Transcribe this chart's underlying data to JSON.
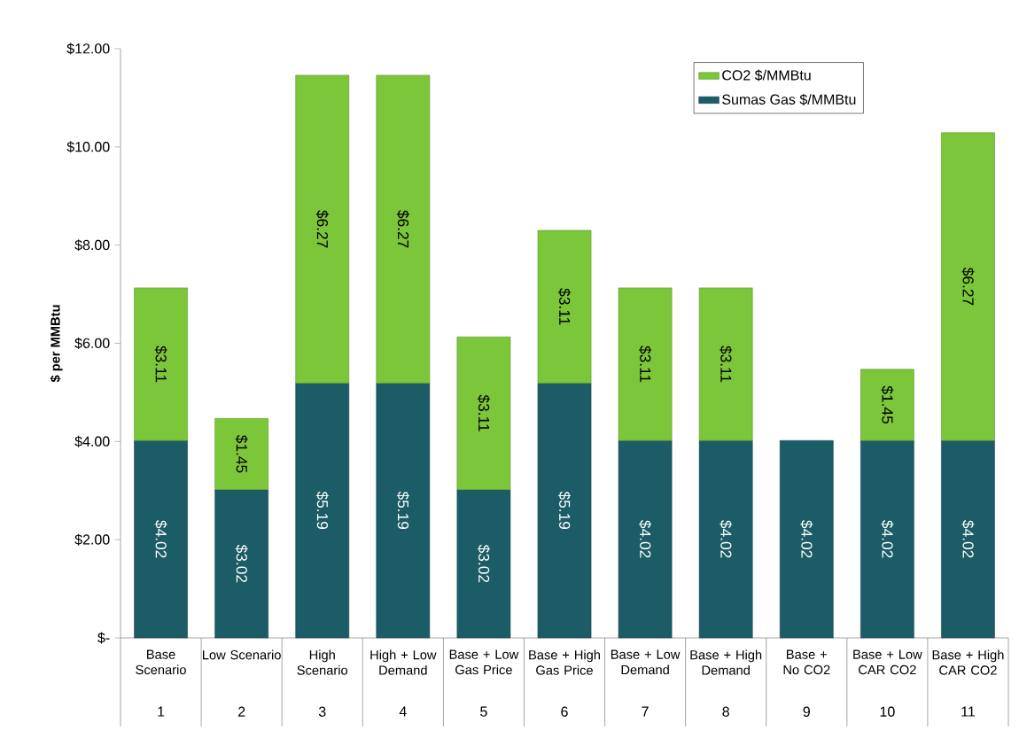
{
  "chart_data": {
    "type": "bar",
    "stacked": true,
    "ylabel": "$ per MMBtu",
    "categories": [
      "Base Scenario",
      "Low Scenario",
      "High Scenario",
      "High + Low Demand",
      "Base + Low Gas Price",
      "Base + High Gas Price",
      "Base + Low Demand",
      "Base + High Demand",
      "Base + No CO2",
      "Base + Low CAR CO2",
      "Base + High CAR CO2"
    ],
    "annotations": [
      "1",
      "2",
      "3",
      "4",
      "5",
      "6",
      "7",
      "8",
      "9",
      "10",
      "11"
    ],
    "series": [
      {
        "name": "Sumas Gas $/MMBtu",
        "color": "#1b5c66",
        "values": [
          4.02,
          3.02,
          5.19,
          5.19,
          3.02,
          5.19,
          4.02,
          4.02,
          4.02,
          4.02,
          4.02
        ],
        "value_labels": [
          "$4.02",
          "$3.02",
          "$5.19",
          "$5.19",
          "$3.02",
          "$5.19",
          "$4.02",
          "$4.02",
          "$4.02",
          "$4.02",
          "$4.02"
        ]
      },
      {
        "name": "CO2 $/MMBtu",
        "color": "#7cc63a",
        "values": [
          3.11,
          1.45,
          6.27,
          6.27,
          3.11,
          3.11,
          3.11,
          3.11,
          null,
          1.45,
          6.27
        ],
        "value_labels": [
          "$3.11",
          "$1.45",
          "$6.27",
          "$6.27",
          "$3.11",
          "$3.11",
          "$3.11",
          "$3.11",
          null,
          "$1.45",
          "$6.27"
        ]
      }
    ],
    "ylim": [
      0,
      12
    ],
    "yticks": [
      {
        "value": 0,
        "label": "$-"
      },
      {
        "value": 2,
        "label": "$2.00"
      },
      {
        "value": 4,
        "label": "$4.00"
      },
      {
        "value": 6,
        "label": "$6.00"
      },
      {
        "value": 8,
        "label": "$8.00"
      },
      {
        "value": 10,
        "label": "$10.00"
      },
      {
        "value": 12,
        "label": "$12.00"
      }
    ],
    "legend": "top right"
  }
}
